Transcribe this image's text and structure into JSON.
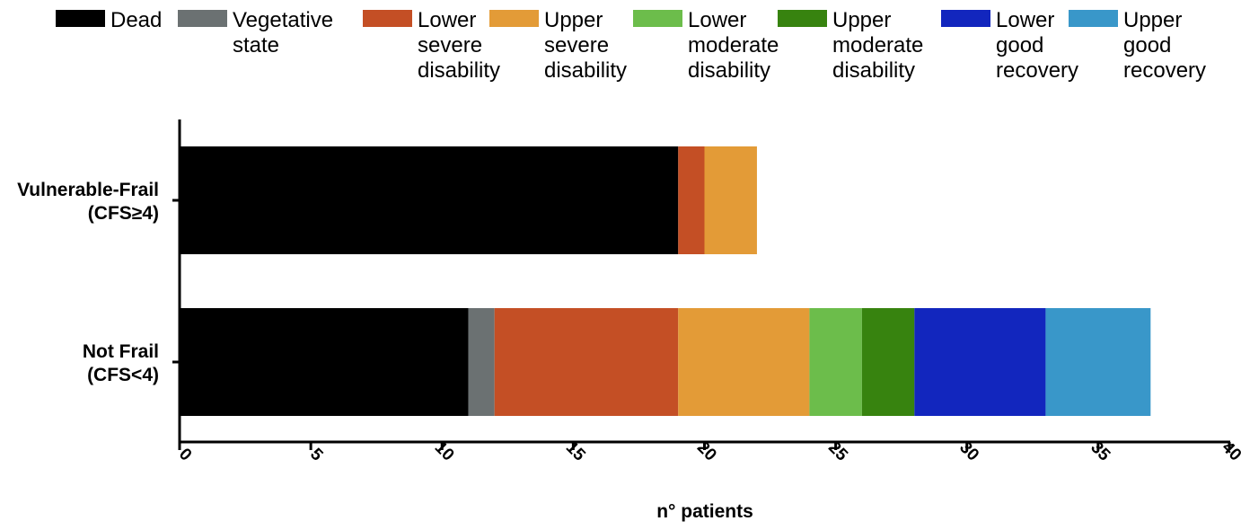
{
  "chart_data": {
    "type": "bar",
    "orientation": "horizontal",
    "stacked": true,
    "categories": [
      "Vulnerable-Frail (CFS≥4)",
      "Not Frail (CFS<4)"
    ],
    "category_labels": [
      [
        "Vulnerable-Frail",
        "(CFS≥4)"
      ],
      [
        "Not Frail",
        "(CFS<4)"
      ]
    ],
    "series": [
      {
        "name": "Dead",
        "name_lines": [
          "Dead"
        ],
        "color": "#000000",
        "values": [
          19,
          11
        ]
      },
      {
        "name": "Vegetative state",
        "name_lines": [
          "Vegetative",
          "state"
        ],
        "color": "#6b7172",
        "values": [
          0,
          1
        ]
      },
      {
        "name": "Lower severe disability",
        "name_lines": [
          "Lower",
          "severe",
          "disability"
        ],
        "color": "#c44f25",
        "values": [
          1,
          7
        ]
      },
      {
        "name": "Upper severe disability",
        "name_lines": [
          "Upper",
          "severe",
          "disability"
        ],
        "color": "#e39b37",
        "values": [
          2,
          5
        ]
      },
      {
        "name": "Lower moderate disability",
        "name_lines": [
          "Lower",
          "moderate",
          "disability"
        ],
        "color": "#6cbd4b",
        "values": [
          0,
          2
        ]
      },
      {
        "name": "Upper moderate disability",
        "name_lines": [
          "Upper",
          "moderate",
          "disability"
        ],
        "color": "#37830f",
        "values": [
          0,
          2
        ]
      },
      {
        "name": "Lower good recovery",
        "name_lines": [
          "Lower",
          "good",
          "recovery"
        ],
        "color": "#1226be",
        "values": [
          0,
          5
        ]
      },
      {
        "name": "Upper good recovery",
        "name_lines": [
          "Upper",
          "good",
          "recovery"
        ],
        "color": "#3997c9",
        "values": [
          0,
          4
        ]
      }
    ],
    "xlabel": "n° patients",
    "ylabel": "",
    "xlim": [
      0,
      40
    ],
    "xticks": [
      "0",
      "5",
      "10",
      "15",
      "20",
      "25",
      "30",
      "35",
      "40"
    ],
    "grid": false,
    "legend_position": "top"
  }
}
